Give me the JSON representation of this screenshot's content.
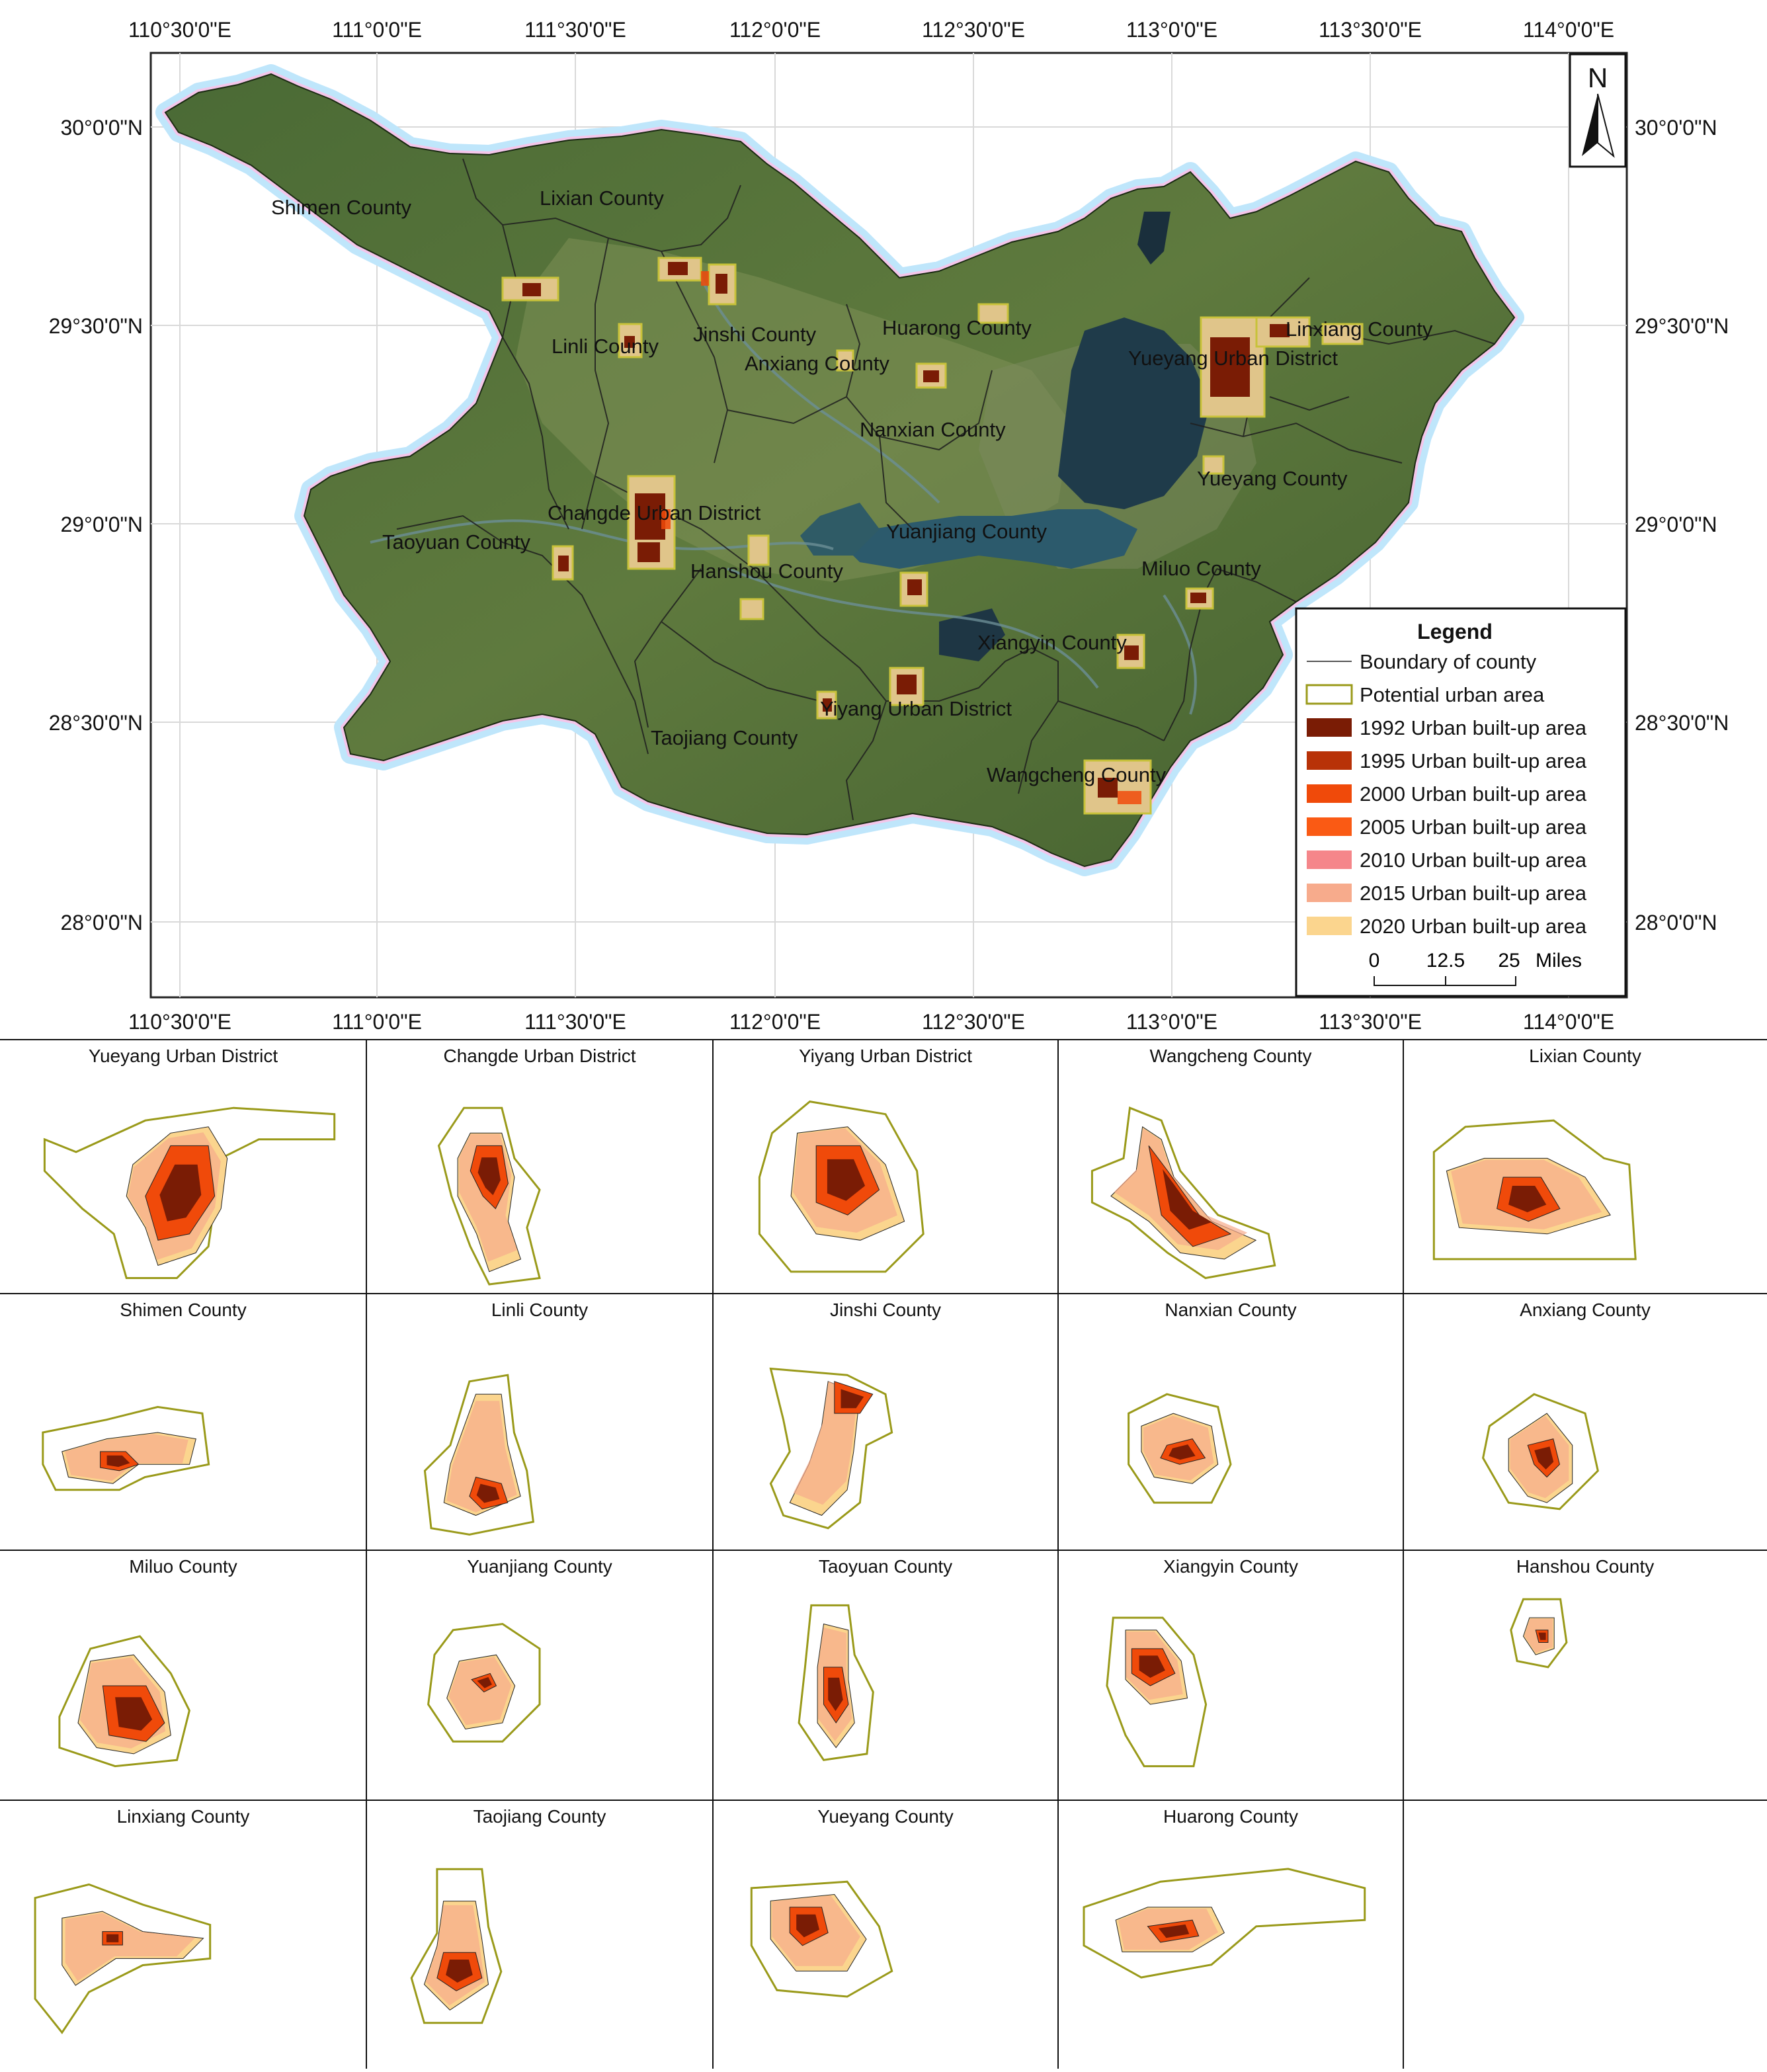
{
  "map": {
    "lon_ticks": [
      "110°30'0\"E",
      "111°0'0\"E",
      "111°30'0\"E",
      "112°0'0\"E",
      "112°30'0\"E",
      "113°0'0\"E",
      "113°30'0\"E",
      "114°0'0\"E"
    ],
    "lat_ticks_left": [
      "30°0'0\"N",
      "29°30'0\"N",
      "29°0'0\"N",
      "28°30'0\"N",
      "28°0'0\"N"
    ],
    "lat_ticks_right": [
      "30°0'0\"N",
      "29°30'0\"N",
      "29°0'0\"N",
      "28°30'0\"N",
      "28°0'0\"N"
    ],
    "north_label": "N",
    "region_labels": [
      {
        "id": "shimen",
        "text": "Shimen County"
      },
      {
        "id": "lixian",
        "text": "Lixian County"
      },
      {
        "id": "linli",
        "text": "Linli County"
      },
      {
        "id": "jinshi",
        "text": "Jinshi County"
      },
      {
        "id": "anxiang",
        "text": "Anxiang County"
      },
      {
        "id": "huarong",
        "text": "Huarong County"
      },
      {
        "id": "linxiang",
        "text": "Linxiang County"
      },
      {
        "id": "yueyang-urban",
        "text": "Yueyang Urban District"
      },
      {
        "id": "nanxian",
        "text": "Nanxian County"
      },
      {
        "id": "yueyang-county",
        "text": "Yueyang County"
      },
      {
        "id": "changde",
        "text": "Changde Urban District"
      },
      {
        "id": "taoyuan",
        "text": "Taoyuan County"
      },
      {
        "id": "yuanjiang",
        "text": "Yuanjiang County"
      },
      {
        "id": "hanshou",
        "text": "Hanshou County"
      },
      {
        "id": "miluo",
        "text": "Miluo County"
      },
      {
        "id": "xiangyin",
        "text": "Xiangyin County"
      },
      {
        "id": "yiyang",
        "text": "Yiyang Urban District"
      },
      {
        "id": "taojiang",
        "text": "Taojiang County"
      },
      {
        "id": "wangcheng",
        "text": "Wangcheng County"
      }
    ]
  },
  "legend": {
    "title": "Legend",
    "items": [
      {
        "label": "Boundary of county",
        "kind": "line",
        "color": "#555555"
      },
      {
        "label": "Potential urban area",
        "kind": "outline",
        "color": "#9a9a1a"
      },
      {
        "label": "1992 Urban built-up area",
        "kind": "fill",
        "color": "#7a1c05"
      },
      {
        "label": "1995 Urban built-up area",
        "kind": "fill",
        "color": "#b83208"
      },
      {
        "label": "2000 Urban built-up area",
        "kind": "fill",
        "color": "#f04a0a"
      },
      {
        "label": "2005 Urban built-up area",
        "kind": "fill",
        "color": "#fa5a14"
      },
      {
        "label": "2010 Urban built-up area",
        "kind": "fill",
        "color": "#f5868a"
      },
      {
        "label": "2015 Urban built-up area",
        "kind": "fill",
        "color": "#f7ab8c"
      },
      {
        "label": "2020 Urban built-up area",
        "kind": "fill",
        "color": "#fbd58e"
      }
    ],
    "scale": {
      "zero": "0",
      "mid": "12.5",
      "end": "25",
      "unit": "Miles"
    }
  },
  "panels": [
    {
      "title": "Yueyang Urban District",
      "shape": "yueyang"
    },
    {
      "title": "Changde Urban District",
      "shape": "changde"
    },
    {
      "title": "Yiyang Urban District",
      "shape": "yiyang"
    },
    {
      "title": "Wangcheng County",
      "shape": "wangcheng"
    },
    {
      "title": "Lixian County",
      "shape": "lixian"
    },
    {
      "title": "Shimen County",
      "shape": "shimen"
    },
    {
      "title": "Linli County",
      "shape": "linli"
    },
    {
      "title": "Jinshi County",
      "shape": "jinshi"
    },
    {
      "title": "Nanxian County",
      "shape": "nanxian"
    },
    {
      "title": "Anxiang County",
      "shape": "anxiang"
    },
    {
      "title": "Miluo County",
      "shape": "miluo"
    },
    {
      "title": "Yuanjiang County",
      "shape": "yuanjiang"
    },
    {
      "title": "Taoyuan County",
      "shape": "taoyuan"
    },
    {
      "title": "Xiangyin County",
      "shape": "xiangyin"
    },
    {
      "title": "Hanshou County",
      "shape": "hanshou"
    },
    {
      "title": "Linxiang County",
      "shape": "linxiang"
    },
    {
      "title": "Taojiang County",
      "shape": "taojiang"
    },
    {
      "title": "Yueyang County",
      "shape": "yueyangcounty"
    },
    {
      "title": "Huarong County",
      "shape": "huarong"
    }
  ]
}
